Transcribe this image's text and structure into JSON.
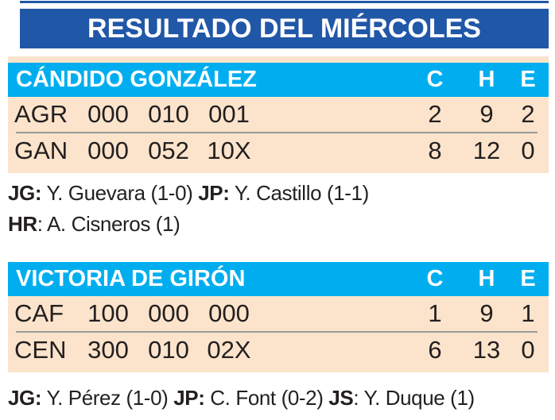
{
  "title": "RESULTADO DEL MIÉRCOLES",
  "colors": {
    "title_bar": "#2157a7",
    "table_header": "#00aeef",
    "row_background": "#fbe4cb",
    "text": "#231f20",
    "divider": "#9b9b9b"
  },
  "tables": [
    {
      "name": "CÁNDIDO GONZÁLEZ",
      "columns": [
        "C",
        "H",
        "E"
      ],
      "rows": [
        {
          "team": "AGR",
          "innings": [
            "000",
            "010",
            "001"
          ],
          "c": "2",
          "h": "9",
          "e": "2"
        },
        {
          "team": "GAN",
          "innings": [
            "000",
            "052",
            "10X"
          ],
          "c": "8",
          "h": "12",
          "e": "0"
        }
      ],
      "notes": [
        [
          {
            "b": "JG:"
          },
          {
            "t": " Y. Guevara (1-0) "
          },
          {
            "b": "JP:"
          },
          {
            "t": " Y. Castillo (1-1)"
          }
        ],
        [
          {
            "b": "HR"
          },
          {
            "t": ": A. Cisneros (1)"
          }
        ]
      ]
    },
    {
      "name": "VICTORIA DE GIRÓN",
      "columns": [
        "C",
        "H",
        "E"
      ],
      "rows": [
        {
          "team": "CAF",
          "innings": [
            "100",
            "000",
            "000"
          ],
          "c": "1",
          "h": "9",
          "e": "1"
        },
        {
          "team": "CEN",
          "innings": [
            "300",
            "010",
            "02X"
          ],
          "c": "6",
          "h": "13",
          "e": "0"
        }
      ],
      "notes": [
        [
          {
            "b": "JG:"
          },
          {
            "t": " Y. Pérez (1-0) "
          },
          {
            "b": "JP:"
          },
          {
            "t": " C. Font (0-2) "
          },
          {
            "b": "JS"
          },
          {
            "t": ": Y. Duque (1)"
          }
        ]
      ]
    }
  ]
}
